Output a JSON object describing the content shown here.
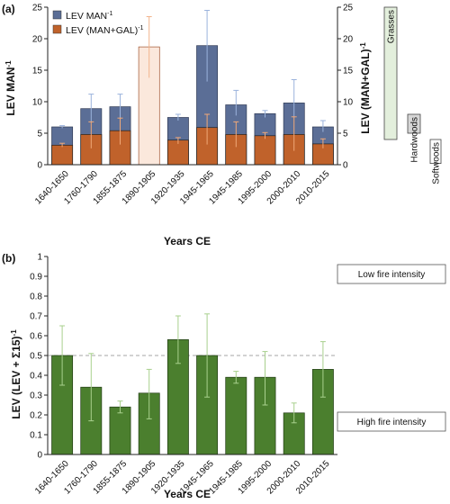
{
  "chart_data": [
    {
      "panel": "(a)",
      "type": "bar",
      "categories": [
        "1640-1650",
        "1760-1790",
        "1855-1875",
        "1890-1905",
        "1920-1935",
        "1945-1965",
        "1945-1985",
        "1995-2000",
        "2000-2010",
        "2010-2015"
      ],
      "xlabel": "Years CE",
      "ylabel": "LEV MAN",
      "ylabel_sup": "-1",
      "y2label": "LEV (MAN+GAL)",
      "y2label_sup": "-1",
      "ylim": [
        0,
        25
      ],
      "yticks": [
        0,
        5,
        10,
        15,
        20,
        25
      ],
      "series": [
        {
          "name": "LEV MAN",
          "name_sup": "-1",
          "color": "#5b6e96",
          "values": [
            6.0,
            8.9,
            9.2,
            18.7,
            7.5,
            18.9,
            9.5,
            8.1,
            9.8,
            6.0
          ],
          "err_low": [
            5.8,
            6.8,
            6.5,
            13.8,
            7.0,
            13.2,
            7.8,
            7.5,
            7.5,
            5.2
          ],
          "err_high": [
            6.2,
            11.2,
            11.2,
            23.5,
            8.0,
            24.5,
            11.8,
            8.6,
            13.5,
            7.0
          ]
        },
        {
          "name": "LEV (MAN+GAL)",
          "name_sup": "-1",
          "color": "#c0622b",
          "values": [
            3.1,
            4.8,
            5.4,
            null,
            3.9,
            5.9,
            4.8,
            4.6,
            4.8,
            3.3
          ],
          "err_low": [
            2.8,
            2.6,
            3.2,
            null,
            3.3,
            3.2,
            2.8,
            4.1,
            2.2,
            2.6
          ],
          "err_high": [
            3.4,
            6.8,
            7.4,
            null,
            4.3,
            8.0,
            6.8,
            5.1,
            7.6,
            4.1
          ]
        }
      ],
      "highlight_index": 3,
      "vegetation": [
        {
          "label": "Grasses",
          "color": "#e3efdc",
          "from": 4,
          "to": 25
        },
        {
          "label": "Hardwoods",
          "color": "#d6d6d6",
          "from": 5,
          "to": 8
        },
        {
          "label": "Softwoods",
          "color": "#ffffff",
          "from": 0.2,
          "to": 4
        }
      ]
    },
    {
      "panel": "(b)",
      "type": "bar",
      "categories": [
        "1640-1650",
        "1760-1790",
        "1855-1875",
        "1890-1905",
        "1920-1935",
        "1945-1965",
        "1945-1985",
        "1995-2000",
        "2000-2010",
        "2010-2015"
      ],
      "xlabel": "Years CE",
      "ylabel": "LEV (LEV + Σ15)",
      "ylabel_sup": "-1",
      "ylim": [
        0,
        1
      ],
      "yticks": [
        0,
        0.1,
        0.2,
        0.3,
        0.4,
        0.5,
        0.6,
        0.7,
        0.8,
        0.9,
        1
      ],
      "reference_line": 0.5,
      "series": [
        {
          "color": "#4b7f2e",
          "values": [
            0.5,
            0.34,
            0.24,
            0.31,
            0.58,
            0.5,
            0.39,
            0.39,
            0.21,
            0.43
          ],
          "err_low": [
            0.35,
            0.17,
            0.21,
            0.18,
            0.46,
            0.29,
            0.36,
            0.25,
            0.16,
            0.29
          ],
          "err_high": [
            0.65,
            0.51,
            0.27,
            0.43,
            0.7,
            0.71,
            0.42,
            0.52,
            0.26,
            0.57
          ]
        }
      ],
      "annotations": {
        "top": "Low fire intensity",
        "bottom": "High fire intensity"
      }
    }
  ]
}
